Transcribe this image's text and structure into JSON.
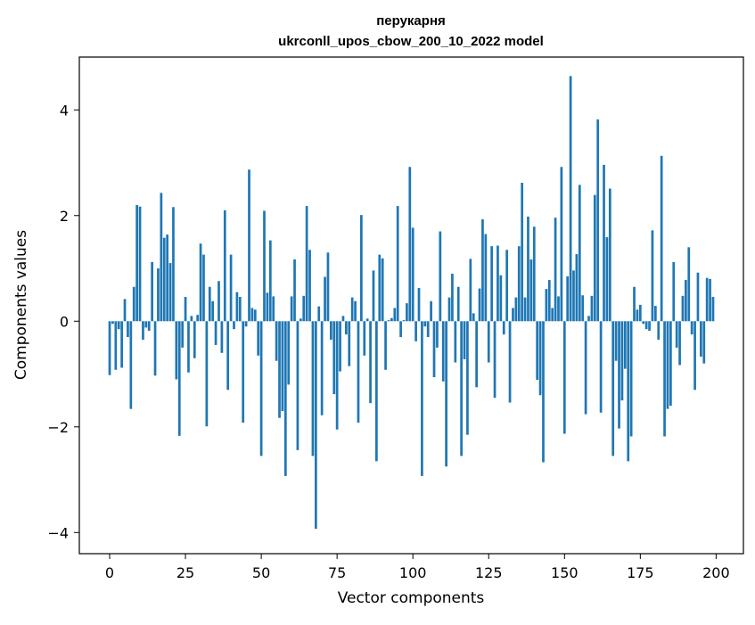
{
  "chart_data": {
    "type": "bar",
    "title": "перукарня",
    "subtitle": "ukrconll_upos_cbow_200_10_2022 model",
    "xlabel": "Vector components",
    "ylabel": "Components values",
    "xlim": [
      -10,
      209
    ],
    "ylim": [
      -4.4,
      5.0
    ],
    "x_ticks": [
      0,
      25,
      50,
      75,
      100,
      125,
      150,
      175,
      200
    ],
    "x_tick_labels": [
      "0",
      "25",
      "50",
      "75",
      "100",
      "125",
      "150",
      "175",
      "200"
    ],
    "y_ticks": [
      -4,
      -2,
      0,
      2,
      4
    ],
    "y_tick_labels": [
      "−4",
      "−2",
      "0",
      "2",
      "4"
    ],
    "grid": false,
    "bar_color": "#1f77b4",
    "x": [
      0,
      1,
      2,
      3,
      4,
      5,
      6,
      7,
      8,
      9,
      10,
      11,
      12,
      13,
      14,
      15,
      16,
      17,
      18,
      19,
      20,
      21,
      22,
      23,
      24,
      25,
      26,
      27,
      28,
      29,
      30,
      31,
      32,
      33,
      34,
      35,
      36,
      37,
      38,
      39,
      40,
      41,
      42,
      43,
      44,
      45,
      46,
      47,
      48,
      49,
      50,
      51,
      52,
      53,
      54,
      55,
      56,
      57,
      58,
      59,
      60,
      61,
      62,
      63,
      64,
      65,
      66,
      67,
      68,
      69,
      70,
      71,
      72,
      73,
      74,
      75,
      76,
      77,
      78,
      79,
      80,
      81,
      82,
      83,
      84,
      85,
      86,
      87,
      88,
      89,
      90,
      91,
      92,
      93,
      94,
      95,
      96,
      97,
      98,
      99,
      100,
      101,
      102,
      103,
      104,
      105,
      106,
      107,
      108,
      109,
      110,
      111,
      112,
      113,
      114,
      115,
      116,
      117,
      118,
      119,
      120,
      121,
      122,
      123,
      124,
      125,
      126,
      127,
      128,
      129,
      130,
      131,
      132,
      133,
      134,
      135,
      136,
      137,
      138,
      139,
      140,
      141,
      142,
      143,
      144,
      145,
      146,
      147,
      148,
      149,
      150,
      151,
      152,
      153,
      154,
      155,
      156,
      157,
      158,
      159,
      160,
      161,
      162,
      163,
      164,
      165,
      166,
      167,
      168,
      169,
      170,
      171,
      172,
      173,
      174,
      175,
      176,
      177,
      178,
      179,
      180,
      181,
      182,
      183,
      184,
      185,
      186,
      187,
      188,
      189,
      190,
      191,
      192,
      193,
      194,
      195,
      196,
      197,
      198,
      199
    ],
    "values": [
      -1.02,
      -0.05,
      -0.92,
      -0.15,
      -0.88,
      0.42,
      -0.3,
      -1.66,
      0.65,
      2.2,
      2.17,
      -0.35,
      -0.12,
      -0.18,
      1.12,
      -1.03,
      1.0,
      2.43,
      1.58,
      1.64,
      1.1,
      2.16,
      -1.1,
      -2.17,
      -0.5,
      0.46,
      -0.97,
      0.1,
      -0.7,
      0.12,
      1.47,
      1.26,
      -1.99,
      0.65,
      0.38,
      -0.45,
      0.76,
      -0.6,
      2.1,
      -1.3,
      1.26,
      -0.15,
      0.55,
      0.46,
      -1.92,
      -0.1,
      2.87,
      0.25,
      0.22,
      -0.65,
      -2.55,
      2.09,
      0.54,
      1.53,
      0.47,
      -0.75,
      -1.83,
      -1.7,
      -2.93,
      -1.2,
      0.47,
      1.17,
      -2.44,
      0.05,
      0.48,
      2.18,
      1.35,
      -2.55,
      -3.93,
      0.28,
      -1.78,
      0.84,
      1.3,
      -0.35,
      -1.38,
      -2.05,
      -0.95,
      0.1,
      -0.25,
      -0.85,
      0.45,
      0.38,
      -1.92,
      2.01,
      -0.65,
      0.05,
      -1.55,
      0.96,
      -2.65,
      1.26,
      1.19,
      -0.92,
      0.02,
      0.06,
      0.25,
      2.18,
      -0.3,
      0.02,
      0.34,
      2.92,
      1.77,
      -0.38,
      0.63,
      -2.93,
      -0.1,
      -0.3,
      0.38,
      -1.06,
      -0.5,
      1.7,
      -1.14,
      -2.75,
      0.45,
      0.9,
      -0.78,
      0.65,
      -2.55,
      -0.72,
      -2.15,
      1.18,
      0.15,
      -1.25,
      0.62,
      1.93,
      1.65,
      -0.78,
      1.42,
      -1.45,
      1.43,
      0.87,
      -0.25,
      1.35,
      -1.54,
      0.25,
      0.45,
      1.42,
      2.62,
      0.45,
      1.98,
      1.17,
      1.79,
      -1.11,
      -1.4,
      -2.67,
      0.61,
      0.78,
      0.25,
      1.96,
      0.47,
      2.92,
      -2.13,
      0.85,
      4.64,
      0.96,
      1.27,
      2.58,
      0.49,
      -1.76,
      0.1,
      0.48,
      2.39,
      3.82,
      -1.73,
      2.96,
      1.59,
      2.51,
      -2.55,
      -0.75,
      -2.03,
      -1.5,
      -0.9,
      -2.65,
      -2.18,
      0.65,
      0.22,
      0.31,
      -0.05,
      -0.15,
      -0.18,
      1.72,
      0.29,
      -0.35,
      3.13,
      -2.18,
      -1.66,
      -1.6,
      1.12,
      -0.5,
      -0.83,
      0.48,
      0.78,
      1.4,
      -0.25,
      -1.3,
      0.92,
      -0.67,
      -0.8,
      0.82,
      0.8,
      0.46
    ]
  }
}
